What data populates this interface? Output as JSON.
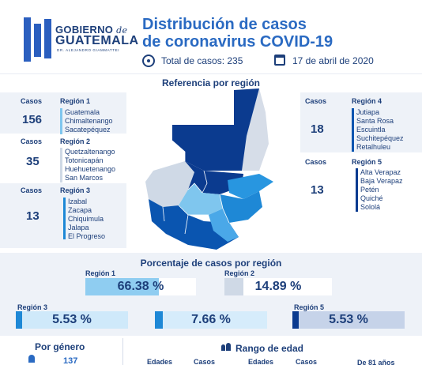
{
  "header": {
    "logo_line1_a": "GOBIERNO",
    "logo_line1_b": "de",
    "logo_line2": "GUATEMALA",
    "logo_line3": "DR. ALEJANDRO GIAMMATTEI",
    "title_line1": "Distribución de casos",
    "title_line2": "de coronavirus COVID-19",
    "total_label": "Total de casos: 235",
    "date": "17 de abril de 2020"
  },
  "reference": {
    "title": "Referencia por región",
    "casos_label": "Casos",
    "regions": [
      {
        "name": "Región 1",
        "cases": "156",
        "departments": [
          "Guatemala",
          "Chimaltenango",
          "Sacatepéquez"
        ],
        "color": "#7fc6ee"
      },
      {
        "name": "Región 2",
        "cases": "35",
        "departments": [
          "Quetzaltenango",
          "Totonicapán",
          "Huehuetenango",
          "San Marcos"
        ],
        "color": "#cfd9e6"
      },
      {
        "name": "Región 3",
        "cases": "13",
        "departments": [
          "Izabal",
          "Zacapa",
          "Chiquimula",
          "Jalapa",
          "El Progreso"
        ],
        "color": "#1e88d6"
      },
      {
        "name": "Región 4",
        "cases": "18",
        "departments": [
          "Jutiapa",
          "Santa Rosa",
          "Escuintla",
          "Suchitepéquez",
          "Retalhuleu"
        ],
        "color": "#0a55b0"
      },
      {
        "name": "Región 5",
        "cases": "13",
        "departments": [
          "Alta Verapaz",
          "Baja Verapaz",
          "Petén",
          "Quiché",
          "Sololá"
        ],
        "color": "#0b3b8f"
      }
    ]
  },
  "percentages": {
    "title": "Porcentaje de casos por región",
    "items": [
      {
        "label": "Región 1",
        "value_text": "66.38 %",
        "value": 66.38,
        "color": "#8fcdf1",
        "accent": "#8fcdf1"
      },
      {
        "label": "Región 2",
        "value_text": "14.89 %",
        "value": 14.89,
        "color": "#eef2f8",
        "accent": "#cfd9e6"
      },
      {
        "label": "Región 3",
        "value_text": "5.53 %",
        "value": 5.53,
        "color": "#cfe9fa",
        "accent": "#1e88d6"
      },
      {
        "label": "",
        "value_text": "7.66 %",
        "value": 7.66,
        "color": "#d6ecfb",
        "accent": "#1e88d6"
      },
      {
        "label": "Región 5",
        "value_text": "5.53 %",
        "value": 5.53,
        "color": "#c6d3e9",
        "accent": "#0b3b8f"
      }
    ]
  },
  "bottom": {
    "gender_title": "Por género",
    "gender_value": "137",
    "age_title": "Rango de edad",
    "col_edades_1": "Edades",
    "col_casos_1": "Casos",
    "col_edades_2": "Edades",
    "col_casos_2": "Casos",
    "age_note": "De 81 años"
  }
}
